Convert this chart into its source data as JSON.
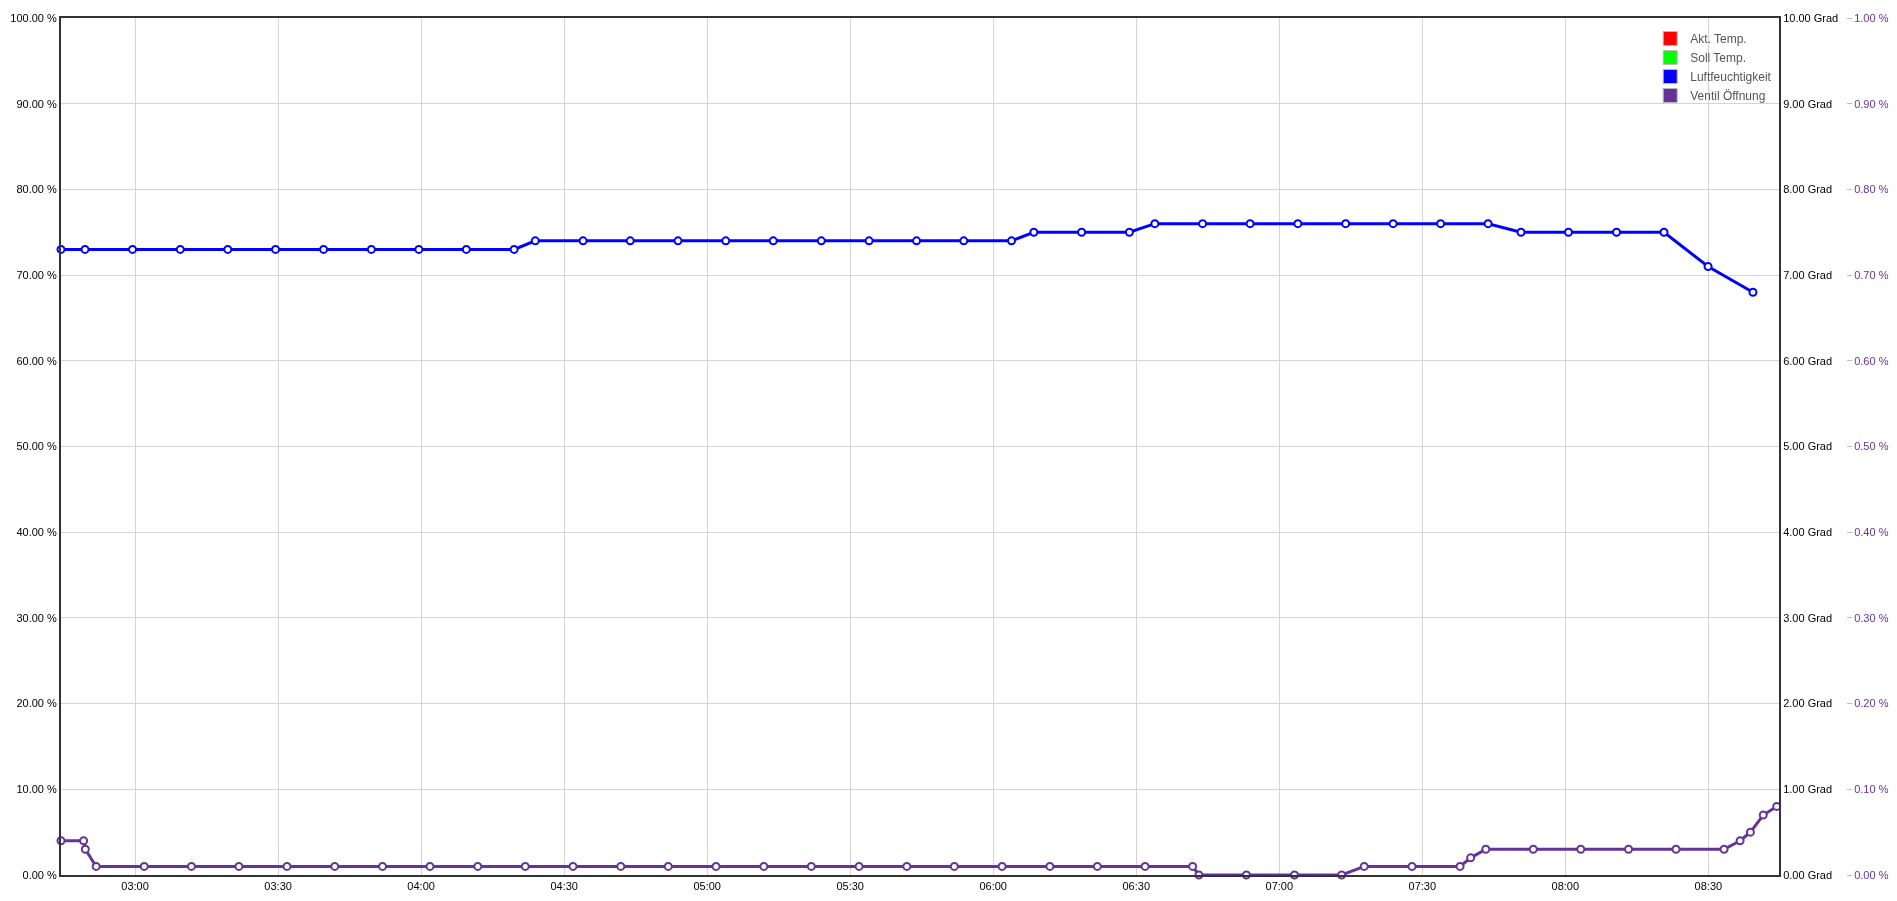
{
  "chart_data": {
    "type": "line",
    "marker": "circle",
    "line_style": "solid",
    "grid": true,
    "legend": "top right",
    "xlim": [
      2.741,
      8.747
    ],
    "xticks": [
      {
        "value": 3,
        "label": "03:00"
      },
      {
        "value": 3.5,
        "label": "03:30"
      },
      {
        "value": 4,
        "label": "04:00"
      },
      {
        "value": 4.5,
        "label": "04:30"
      },
      {
        "value": 5,
        "label": "05:00"
      },
      {
        "value": 5.5,
        "label": "05:30"
      },
      {
        "value": 6,
        "label": "06:00"
      },
      {
        "value": 6.5,
        "label": "06:30"
      },
      {
        "value": 7,
        "label": "07:00"
      },
      {
        "value": 7.5,
        "label": "07:30"
      },
      {
        "value": 8,
        "label": "08:00"
      },
      {
        "value": 8.5,
        "label": "08:30"
      }
    ],
    "ylim": [
      0,
      100
    ],
    "yticks": [
      {
        "value": 0,
        "label": "0.00 %"
      },
      {
        "value": 10,
        "label": "10.00 %"
      },
      {
        "value": 20,
        "label": "20.00 %"
      },
      {
        "value": 30,
        "label": "30.00 %"
      },
      {
        "value": 40,
        "label": "40.00 %"
      },
      {
        "value": 50,
        "label": "50.00 %"
      },
      {
        "value": 60,
        "label": "60.00 %"
      },
      {
        "value": 70,
        "label": "70.00 %"
      },
      {
        "value": 80,
        "label": "80.00 %"
      },
      {
        "value": 90,
        "label": "90.00 %"
      },
      {
        "value": 100,
        "label": "100.00 %"
      }
    ],
    "y2lim": [
      0,
      10
    ],
    "y2ticks": [
      {
        "value": 0,
        "label": "0.00 Grad"
      },
      {
        "value": 1,
        "label": "1.00 Grad"
      },
      {
        "value": 2,
        "label": "2.00 Grad"
      },
      {
        "value": 3,
        "label": "3.00 Grad"
      },
      {
        "value": 4,
        "label": "4.00 Grad"
      },
      {
        "value": 5,
        "label": "5.00 Grad"
      },
      {
        "value": 6,
        "label": "6.00 Grad"
      },
      {
        "value": 7,
        "label": "7.00 Grad"
      },
      {
        "value": 8,
        "label": "8.00 Grad"
      },
      {
        "value": 9,
        "label": "9.00 Grad"
      },
      {
        "value": 10,
        "label": "10.00 Grad"
      }
    ],
    "y3lim": [
      0,
      1
    ],
    "y3ticks": [
      {
        "value": 0,
        "label": "0.00 %"
      },
      {
        "value": 0.1,
        "label": "0.10 %"
      },
      {
        "value": 0.2,
        "label": "0.20 %"
      },
      {
        "value": 0.3,
        "label": "0.30 %"
      },
      {
        "value": 0.4,
        "label": "0.40 %"
      },
      {
        "value": 0.5,
        "label": "0.50 %"
      },
      {
        "value": 0.6,
        "label": "0.60 %"
      },
      {
        "value": 0.7,
        "label": "0.70 %"
      },
      {
        "value": 0.8,
        "label": "0.80 %"
      },
      {
        "value": 0.9,
        "label": "0.90 %"
      },
      {
        "value": 1,
        "label": "1.00 %"
      }
    ],
    "series": [
      {
        "name": "Akt. Temp.",
        "color": "#ff0000",
        "axis": "y2"
      },
      {
        "name": "Soll Temp.",
        "color": "#00ff00",
        "axis": "y2"
      },
      {
        "name": "Luftfeuchtigkeit",
        "color": "#0000ff",
        "axis": "y",
        "x": [
          2.741,
          2.825,
          2.991,
          3.158,
          3.324,
          3.491,
          3.659,
          3.826,
          3.992,
          4.158,
          4.325,
          4.399,
          4.566,
          4.731,
          4.898,
          5.065,
          5.231,
          5.399,
          5.566,
          5.732,
          5.897,
          6.064,
          6.142,
          6.309,
          6.476,
          6.565,
          6.732,
          6.898,
          7.065,
          7.232,
          7.398,
          7.564,
          7.73,
          7.845,
          8.011,
          8.179,
          8.345,
          8.499,
          8.656
        ],
        "values": [
          73,
          73,
          73,
          73,
          73,
          73,
          73,
          73,
          73,
          73,
          73,
          74,
          74,
          74,
          74,
          74,
          74,
          74,
          74,
          74,
          74,
          74,
          75,
          75,
          75,
          76,
          76,
          76,
          76,
          76,
          76,
          76,
          76,
          75,
          75,
          75,
          75,
          71,
          68
        ]
      },
      {
        "name": "Ventil Öffnung",
        "color": "#663399",
        "axis": "y3",
        "x": [
          2.741,
          2.82,
          2.826,
          2.864,
          3.032,
          3.197,
          3.363,
          3.531,
          3.698,
          3.865,
          4.031,
          4.198,
          4.364,
          4.531,
          4.698,
          4.864,
          5.031,
          5.198,
          5.364,
          5.531,
          5.698,
          5.864,
          6.031,
          6.198,
          6.364,
          6.531,
          6.697,
          6.719,
          6.885,
          7.053,
          7.218,
          7.297,
          7.464,
          7.632,
          7.669,
          7.722,
          7.888,
          8.054,
          8.221,
          8.387,
          8.555,
          8.611,
          8.647,
          8.692,
          8.739
        ],
        "values": [
          0.04,
          0.04,
          0.03,
          0.01,
          0.01,
          0.01,
          0.01,
          0.01,
          0.01,
          0.01,
          0.01,
          0.01,
          0.01,
          0.01,
          0.01,
          0.01,
          0.01,
          0.01,
          0.01,
          0.01,
          0.01,
          0.01,
          0.01,
          0.01,
          0.01,
          0.01,
          0.01,
          0,
          0,
          0,
          0,
          0.01,
          0.01,
          0.01,
          0.02,
          0.03,
          0.03,
          0.03,
          0.03,
          0.03,
          0.03,
          0.04,
          0.05,
          0.07,
          0.08
        ]
      }
    ]
  }
}
